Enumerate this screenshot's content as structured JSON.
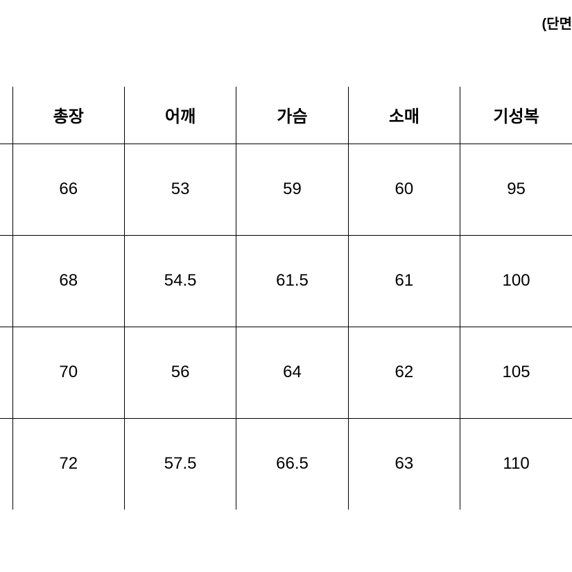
{
  "note": "(단면",
  "table": {
    "columns": [
      "총장",
      "어깨",
      "가슴",
      "소매",
      "기성복"
    ],
    "rows": [
      [
        "66",
        "53",
        "59",
        "60",
        "95"
      ],
      [
        "68",
        "54.5",
        "61.5",
        "61",
        "100"
      ],
      [
        "70",
        "56",
        "64",
        "62",
        "105"
      ],
      [
        "72",
        "57.5",
        "66.5",
        "63",
        "110"
      ]
    ],
    "header_fontsize": 24,
    "header_fontweight": 800,
    "cell_fontsize": 24,
    "cell_fontweight": 400,
    "text_color": "#000000",
    "border_color": "#000000",
    "background_color": "#ffffff",
    "row_height_header": 82,
    "row_height_body": 132
  }
}
